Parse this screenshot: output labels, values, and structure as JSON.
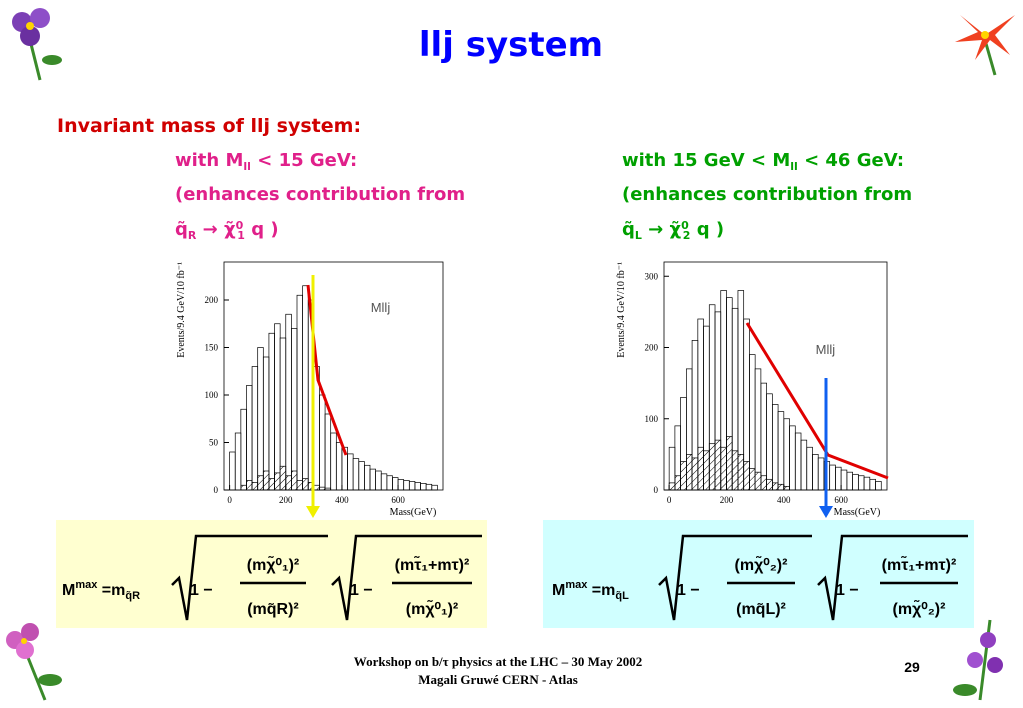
{
  "title": "llj system",
  "heading": "Invariant mass of llj system:",
  "left": {
    "line1": [
      "with M",
      "ll",
      " < 15 GeV:"
    ],
    "line2": "(enhances contribution from",
    "line3": [
      "q̃",
      "R",
      " → χ̃",
      "0",
      "1",
      " q )"
    ]
  },
  "right": {
    "line1": [
      "with 15 GeV < M",
      "ll",
      " < 46 GeV:"
    ],
    "line2": "(enhances contribution from",
    "line3": [
      "q̃",
      "L",
      " → χ̃",
      "0",
      "2",
      " q )"
    ]
  },
  "chart_data": [
    {
      "type": "histogram",
      "annotation": "Mllj",
      "xlabel": "Mass(GeV)",
      "ylabel": "Events/9.4 GeV/10 fb⁻¹",
      "bins": [
        0,
        20,
        40,
        60,
        80,
        100,
        120,
        140,
        160,
        180,
        200,
        220,
        240,
        260,
        280,
        300,
        320,
        340,
        360,
        380,
        400,
        420,
        440,
        460,
        480,
        500,
        520,
        540,
        560,
        580,
        600,
        620,
        640,
        660,
        680,
        700,
        720,
        740
      ],
      "series": [
        {
          "color": "#000000",
          "values": [
            40,
            60,
            85,
            110,
            130,
            150,
            140,
            165,
            175,
            160,
            185,
            170,
            205,
            215,
            200,
            130,
            100,
            80,
            60,
            50,
            45,
            38,
            33,
            30,
            26,
            22,
            20,
            17,
            15,
            13,
            11,
            10,
            9,
            8,
            7,
            6,
            5
          ]
        },
        {
          "color": "#000000",
          "values": [
            0,
            0,
            5,
            10,
            8,
            15,
            20,
            12,
            18,
            25,
            15,
            20,
            10,
            12,
            8,
            5,
            3,
            2,
            0,
            0,
            0,
            0,
            0,
            0,
            0,
            0,
            0,
            0,
            0,
            0,
            0,
            0,
            0,
            0,
            0,
            0,
            0
          ]
        }
      ],
      "xlim": [
        -20,
        760
      ],
      "xticks": [
        0,
        200,
        400,
        600
      ],
      "ylim": [
        0,
        240
      ],
      "yticks": [
        0,
        50,
        100,
        150,
        200
      ]
    },
    {
      "type": "histogram",
      "annotation": "Mllj",
      "xlabel": "Mass(GeV)",
      "ylabel": "Events/9.4 GeV/10 fb⁻¹",
      "bins": [
        0,
        20,
        40,
        60,
        80,
        100,
        120,
        140,
        160,
        180,
        200,
        220,
        240,
        260,
        280,
        300,
        320,
        340,
        360,
        380,
        400,
        420,
        440,
        460,
        480,
        500,
        520,
        540,
        560,
        580,
        600,
        620,
        640,
        660,
        680,
        700,
        720,
        740
      ],
      "series": [
        {
          "color": "#000000",
          "values": [
            60,
            90,
            130,
            170,
            210,
            240,
            230,
            260,
            250,
            280,
            270,
            255,
            280,
            240,
            190,
            170,
            150,
            135,
            120,
            110,
            100,
            90,
            80,
            70,
            60,
            50,
            45,
            40,
            35,
            32,
            28,
            25,
            22,
            20,
            18,
            15,
            12
          ]
        },
        {
          "color": "#000000",
          "values": [
            10,
            20,
            40,
            50,
            45,
            60,
            55,
            65,
            70,
            60,
            75,
            55,
            50,
            40,
            30,
            25,
            20,
            15,
            10,
            8,
            5,
            0,
            0,
            0,
            0,
            0,
            0,
            0,
            0,
            0,
            0,
            0,
            0,
            0,
            0,
            0,
            0
          ]
        }
      ],
      "xlim": [
        -18,
        760
      ],
      "xticks": [
        0,
        200,
        400,
        600
      ],
      "ylim": [
        0,
        320
      ],
      "yticks": [
        0,
        100,
        200,
        300
      ]
    }
  ],
  "formula_left": {
    "lhs": "M",
    "sup": "max",
    "eq": " =m",
    "eq_sub": "q̃R",
    "one1": "1 −",
    "num1": "(mχ̃⁰₁)²",
    "den1": "(mq̃R)²",
    "one2": "1 −",
    "num2": "(mτ̃₁+mτ)²",
    "den2": "(mχ̃⁰₁)²"
  },
  "formula_right": {
    "lhs": "M",
    "sup": "max",
    "eq": " =m",
    "eq_sub": "q̃L",
    "one1": "1 −",
    "num1": "(mχ̃⁰₂)²",
    "den1": "(mq̃L)²",
    "one2": "1 −",
    "num2": "(mτ̃₁+mτ)²",
    "den2": "(mχ̃⁰₂)²"
  },
  "footer": {
    "line1": "Workshop on b/τ physics at the LHC – 30 May 2002",
    "line2": "Magali Gruwé CERN - Atlas"
  },
  "page_number": "29"
}
